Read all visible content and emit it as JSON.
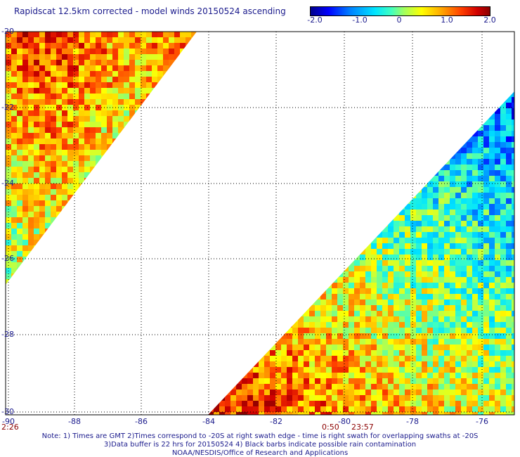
{
  "title": "Rapidscat 12.5km corrected - model winds 20150524 ascending",
  "colorbar": {
    "ticks": [
      "-2.0",
      "-1.0",
      "0",
      "1.0",
      "2.0"
    ],
    "min": -2.0,
    "max": 2.0
  },
  "map": {
    "lon_labels": [
      "-90",
      "-88",
      "-86",
      "-84",
      "-82",
      "-80",
      "-78",
      "-76"
    ],
    "lat_labels": [
      "-20",
      "-22",
      "-24",
      "-26",
      "-28",
      "-30"
    ],
    "lon_range": [
      -90,
      -75
    ],
    "lat_range": [
      -30,
      -20
    ]
  },
  "swath_times": {
    "left": "2:26",
    "mid_a": "0:50",
    "mid_b": "23:57"
  },
  "footer": {
    "line1": "Note: 1) Times are GMT 2)Times correspond to -20S at right swath edge - time is right swath for overlapping swaths at -20S",
    "line2": "3)Data buffer is 22 hrs for 20150524 4) Black barbs indicate possible rain contamination",
    "line3": "NOAA/NESDIS/Office of Research and Applications"
  }
}
